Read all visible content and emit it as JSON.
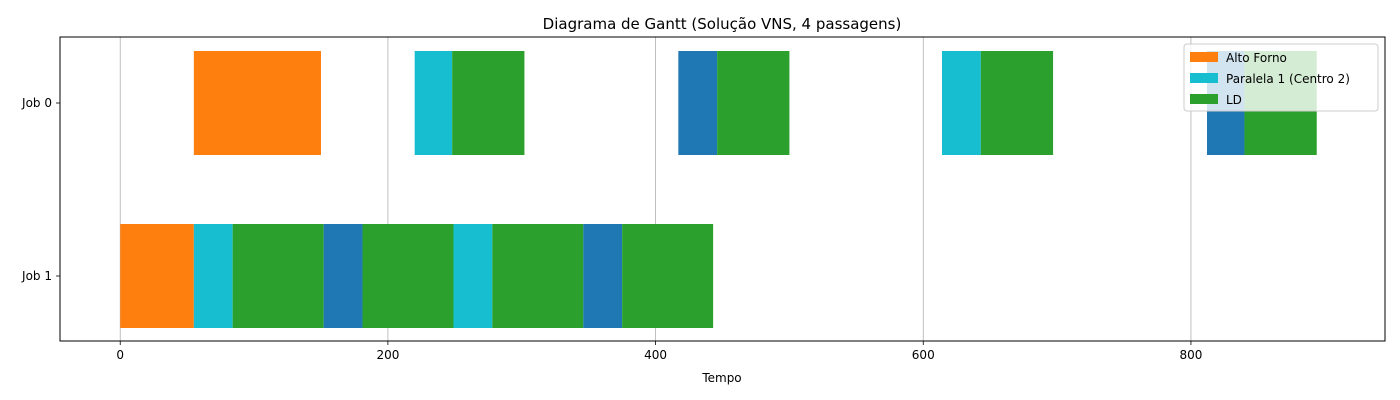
{
  "chart_data": {
    "type": "gantt",
    "title": "Diagrama de Gantt (Solução VNS, 4 passagens)",
    "xlabel": "Tempo",
    "ylabel": "",
    "xlim": [
      -45,
      945
    ],
    "xticks": [
      0,
      200,
      400,
      600,
      800
    ],
    "grid": "x",
    "legend_position": "top-right",
    "jobs": [
      "Job 0",
      "Job 1"
    ],
    "legend": [
      {
        "label": "Alto Forno",
        "color": "#ff7f0e"
      },
      {
        "label": "Paralela 1 (Centro 2)",
        "color": "#17becf"
      },
      {
        "label": "LD",
        "color": "#2ca02c"
      }
    ],
    "tasks": [
      {
        "job": "Job 0",
        "start": 55,
        "end": 150,
        "color": "#ff7f0e"
      },
      {
        "job": "Job 0",
        "start": 220,
        "end": 248,
        "color": "#17becf"
      },
      {
        "job": "Job 0",
        "start": 248,
        "end": 302,
        "color": "#2ca02c"
      },
      {
        "job": "Job 0",
        "start": 417,
        "end": 446,
        "color": "#1f77b4"
      },
      {
        "job": "Job 0",
        "start": 446,
        "end": 500,
        "color": "#2ca02c"
      },
      {
        "job": "Job 0",
        "start": 614,
        "end": 643,
        "color": "#17becf"
      },
      {
        "job": "Job 0",
        "start": 643,
        "end": 697,
        "color": "#2ca02c"
      },
      {
        "job": "Job 0",
        "start": 812,
        "end": 840,
        "color": "#1f77b4"
      },
      {
        "job": "Job 0",
        "start": 840,
        "end": 894,
        "color": "#2ca02c"
      },
      {
        "job": "Job 1",
        "start": 0,
        "end": 55,
        "color": "#ff7f0e"
      },
      {
        "job": "Job 1",
        "start": 55,
        "end": 84,
        "color": "#17becf"
      },
      {
        "job": "Job 1",
        "start": 84,
        "end": 152,
        "color": "#2ca02c"
      },
      {
        "job": "Job 1",
        "start": 152,
        "end": 181,
        "color": "#1f77b4"
      },
      {
        "job": "Job 1",
        "start": 181,
        "end": 249,
        "color": "#2ca02c"
      },
      {
        "job": "Job 1",
        "start": 249,
        "end": 278,
        "color": "#17becf"
      },
      {
        "job": "Job 1",
        "start": 278,
        "end": 346,
        "color": "#2ca02c"
      },
      {
        "job": "Job 1",
        "start": 346,
        "end": 375,
        "color": "#1f77b4"
      },
      {
        "job": "Job 1",
        "start": 375,
        "end": 443,
        "color": "#2ca02c"
      }
    ]
  }
}
